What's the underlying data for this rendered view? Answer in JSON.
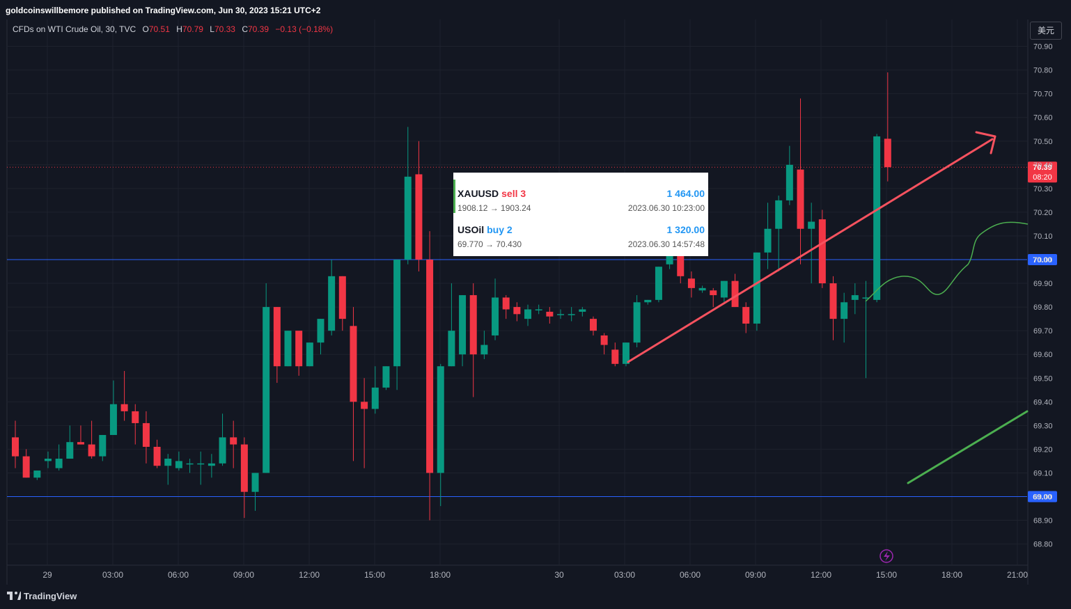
{
  "header": {
    "published": "goldcoinswillbemore published on TradingView.com, Jun 30, 2023 15:21 UTC+2"
  },
  "legend": {
    "symbol": "CFDs on WTI Crude Oil, 30, TVC",
    "open_label": "O",
    "open": "70.51",
    "high_label": "H",
    "high": "70.79",
    "low_label": "L",
    "low": "70.33",
    "close_label": "C",
    "close": "70.39",
    "change": "−0.13 (−0.18%)"
  },
  "currency_button": "美元",
  "footer": {
    "brand": "TradingView"
  },
  "trades": [
    {
      "symbol": "XAUUSD",
      "side": "sell 3",
      "side_color": "#f23645",
      "bar_color": "#4caf50",
      "amount": "1 464.00",
      "prices": "1908.12 → 1903.24",
      "time": "2023.06.30 10:23:00"
    },
    {
      "symbol": "USOil",
      "side": "buy 2",
      "side_color": "#2196f3",
      "bar_color": "#ffffff",
      "amount": "1 320.00",
      "prices": "69.770 → 70.430",
      "time": "2023.06.30 14:57:48"
    }
  ],
  "colors": {
    "up": "#089981",
    "down": "#f23645",
    "hline": "#2962ff",
    "price_line": "#f23645",
    "trend_red": "#f7525f",
    "trend_green": "#4caf50",
    "lightning": "#9c27b0"
  },
  "chart_data": {
    "type": "candlestick",
    "symbol": "CFDs on WTI Crude Oil",
    "interval": "30",
    "ylim": [
      68.75,
      70.95
    ],
    "y_ticks": [
      "68.80",
      "68.90",
      "69.00",
      "69.10",
      "69.20",
      "69.30",
      "69.40",
      "69.50",
      "69.60",
      "69.70",
      "69.80",
      "69.90",
      "70.00",
      "70.10",
      "70.20",
      "70.30",
      "70.40",
      "70.50",
      "70.60",
      "70.70",
      "70.80",
      "70.90"
    ],
    "x_ticks": [
      "29",
      "03:00",
      "06:00",
      "09:00",
      "12:00",
      "15:00",
      "18:00",
      "30",
      "03:00",
      "06:00",
      "09:00",
      "12:00",
      "15:00",
      "18:00",
      "21:00"
    ],
    "horizontal_lines": [
      70.0,
      69.0
    ],
    "current_price": "70.39",
    "countdown": "08:20",
    "level_labels": [
      "70.00",
      "69.00"
    ],
    "candles": [
      [
        69.25,
        69.17,
        69.32,
        69.12
      ],
      [
        69.17,
        69.08,
        69.2,
        69.08
      ],
      [
        69.08,
        69.11,
        69.11,
        69.07
      ],
      [
        69.15,
        69.16,
        69.19,
        69.12
      ],
      [
        69.12,
        69.16,
        69.22,
        69.11
      ],
      [
        69.16,
        69.23,
        69.3,
        69.17
      ],
      [
        69.23,
        69.22,
        69.3,
        69.22
      ],
      [
        69.22,
        69.17,
        69.32,
        69.16
      ],
      [
        69.17,
        69.26,
        69.26,
        69.15
      ],
      [
        69.26,
        69.39,
        69.49,
        69.26
      ],
      [
        69.39,
        69.36,
        69.53,
        69.32
      ],
      [
        69.36,
        69.31,
        69.39,
        69.22
      ],
      [
        69.31,
        69.21,
        69.36,
        69.14
      ],
      [
        69.21,
        69.13,
        69.24,
        69.12
      ],
      [
        69.13,
        69.16,
        69.18,
        69.05
      ],
      [
        69.12,
        69.15,
        69.19,
        69.11
      ],
      [
        69.14,
        69.14,
        69.16,
        69.1
      ],
      [
        69.14,
        69.14,
        69.19,
        69.05
      ],
      [
        69.13,
        69.14,
        69.18,
        69.08
      ],
      [
        69.14,
        69.25,
        69.35,
        69.13
      ],
      [
        69.25,
        69.22,
        69.32,
        69.12
      ],
      [
        69.22,
        69.02,
        69.25,
        68.91
      ],
      [
        69.02,
        69.1,
        69.1,
        68.94
      ],
      [
        69.1,
        69.8,
        69.9,
        69.1
      ],
      [
        69.8,
        69.55,
        69.8,
        69.48
      ],
      [
        69.55,
        69.7,
        69.7,
        69.55
      ],
      [
        69.7,
        69.55,
        69.61,
        69.51
      ],
      [
        69.55,
        69.65,
        69.65,
        69.55
      ],
      [
        69.65,
        69.75,
        69.75,
        69.6
      ],
      [
        69.7,
        69.93,
        70.0,
        69.68
      ],
      [
        69.93,
        69.75,
        69.93,
        69.7
      ],
      [
        69.72,
        69.4,
        69.8,
        69.15
      ],
      [
        69.4,
        69.37,
        69.5,
        69.12
      ],
      [
        69.37,
        69.46,
        69.55,
        69.35
      ],
      [
        69.46,
        69.55,
        69.55,
        69.45
      ],
      [
        69.55,
        70.0,
        70.0,
        69.45
      ],
      [
        70.0,
        70.35,
        70.56,
        69.98
      ],
      [
        70.36,
        70.0,
        70.5,
        69.95
      ],
      [
        70.0,
        69.1,
        70.12,
        68.9
      ],
      [
        69.1,
        69.55,
        69.56,
        68.96
      ],
      [
        69.55,
        69.7,
        69.9,
        69.55
      ],
      [
        69.6,
        69.85,
        69.85,
        69.55
      ],
      [
        69.85,
        69.6,
        69.9,
        69.42
      ],
      [
        69.6,
        69.64,
        69.7,
        69.58
      ],
      [
        69.68,
        69.84,
        69.92,
        69.66
      ],
      [
        69.84,
        69.79,
        69.85,
        69.75
      ],
      [
        69.8,
        69.77,
        69.82,
        69.74
      ],
      [
        69.75,
        69.79,
        69.81,
        69.72
      ],
      [
        69.79,
        69.79,
        69.81,
        69.77
      ],
      [
        69.78,
        69.76,
        69.8,
        69.73
      ],
      [
        69.77,
        69.77,
        69.79,
        69.75
      ],
      [
        69.77,
        69.77,
        69.8,
        69.74
      ],
      [
        69.78,
        69.79,
        69.8,
        69.76
      ],
      [
        69.75,
        69.7,
        69.76,
        69.68
      ],
      [
        69.68,
        69.64,
        69.69,
        69.6
      ],
      [
        69.62,
        69.56,
        69.65,
        69.55
      ],
      [
        69.56,
        69.65,
        69.65,
        69.55
      ],
      [
        69.65,
        69.82,
        69.85,
        69.63
      ],
      [
        69.82,
        69.83,
        69.83,
        69.81
      ],
      [
        69.83,
        69.97,
        69.97,
        69.82
      ],
      [
        69.98,
        70.02,
        70.04,
        69.96
      ],
      [
        70.02,
        69.93,
        70.05,
        69.9
      ],
      [
        69.92,
        69.88,
        69.95,
        69.84
      ],
      [
        69.87,
        69.88,
        69.89,
        69.86
      ],
      [
        69.87,
        69.85,
        69.88,
        69.8
      ],
      [
        69.84,
        69.91,
        69.91,
        69.82
      ],
      [
        69.91,
        69.8,
        69.94,
        69.8
      ],
      [
        69.8,
        69.73,
        69.82,
        69.69
      ],
      [
        69.73,
        70.03,
        70.03,
        69.7
      ],
      [
        70.03,
        70.13,
        70.24,
        69.96
      ],
      [
        70.13,
        70.25,
        70.27,
        69.95
      ],
      [
        70.25,
        70.4,
        70.48,
        70.23
      ],
      [
        70.38,
        70.13,
        70.68,
        69.98
      ],
      [
        70.13,
        70.16,
        70.24,
        69.9
      ],
      [
        70.17,
        69.9,
        70.21,
        69.88
      ],
      [
        69.9,
        69.75,
        69.93,
        69.66
      ],
      [
        69.75,
        69.82,
        69.86,
        69.65
      ],
      [
        69.83,
        69.85,
        69.9,
        69.77
      ],
      [
        69.84,
        69.84,
        69.91,
        69.5
      ],
      [
        69.83,
        70.52,
        70.53,
        69.82
      ],
      [
        70.51,
        70.39,
        70.79,
        70.33
      ]
    ]
  }
}
